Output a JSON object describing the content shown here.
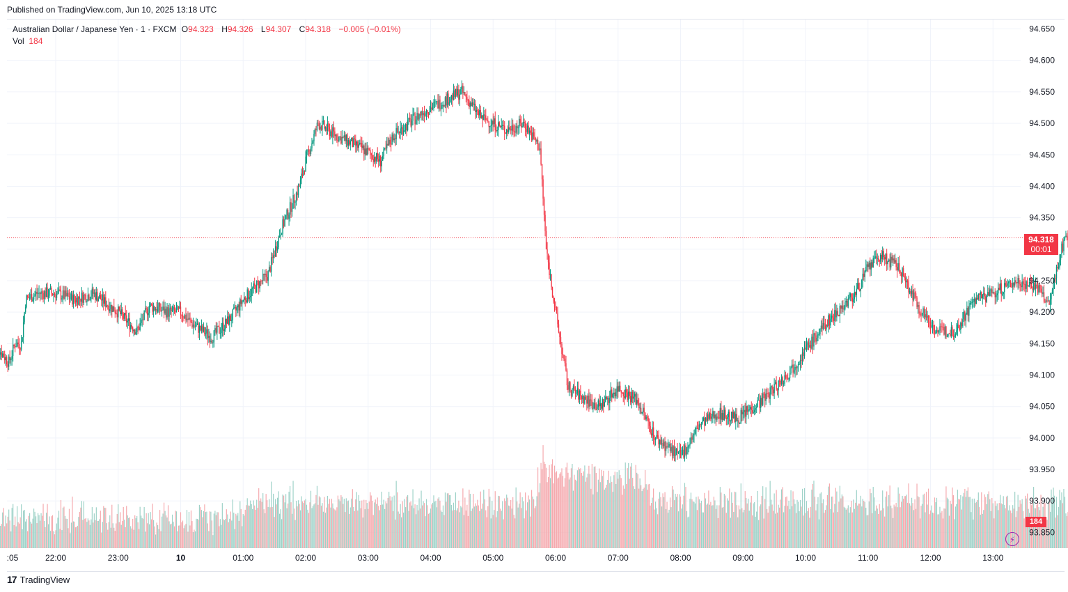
{
  "published": "Published on TradingView.com, Jun 10, 2025 13:18 UTC",
  "legend": {
    "symbol": "Australian Dollar / Japanese Yen · 1 · FXCM",
    "open_label": "O",
    "open": "94.323",
    "high_label": "H",
    "high": "94.326",
    "low_label": "L",
    "low": "94.307",
    "close_label": "C",
    "close": "94.318",
    "change": "−0.005 (−0.01%)",
    "vol_label": "Vol",
    "vol": "184"
  },
  "price_tag": {
    "price": "94.318",
    "countdown": "00:01"
  },
  "vol_tag": "184",
  "footer": {
    "logo_mark": "17",
    "brand": "TradingView"
  },
  "colors": {
    "up": "#089981",
    "down": "#f23645",
    "up_vol": "#9ed2c8",
    "down_vol": "#f5aaae",
    "grid": "#f0f3fa",
    "text": "#131722"
  },
  "icons": {
    "flash": "lightning-icon",
    "logo": "tradingview-logo-icon"
  },
  "chart_data": {
    "type": "candlestick",
    "title": "Australian Dollar / Japanese Yen · 1 · FXCM",
    "interval": "1 minute",
    "x_ticks": [
      ":05",
      "22:00",
      "23:00",
      "10",
      "01:00",
      "02:00",
      "03:00",
      "04:00",
      "05:00",
      "06:00",
      "07:00",
      "08:00",
      "09:00",
      "10:00",
      "11:00",
      "12:00",
      "13:00"
    ],
    "y_ticks": [
      "94.650",
      "94.600",
      "94.550",
      "94.500",
      "94.450",
      "94.400",
      "94.350",
      "94.300",
      "94.250",
      "94.200",
      "94.150",
      "94.100",
      "94.050",
      "94.000",
      "93.950",
      "93.900",
      "93.850"
    ],
    "ylim": [
      93.825,
      94.665
    ],
    "last_price": 94.318,
    "grid": true,
    "price_path": [
      [
        21.0,
        94.2
      ],
      [
        21.1,
        94.14
      ],
      [
        21.25,
        94.12
      ],
      [
        21.35,
        94.15
      ],
      [
        21.45,
        94.15
      ],
      [
        21.52,
        94.22
      ],
      [
        21.7,
        94.23
      ],
      [
        22.0,
        94.23
      ],
      [
        22.3,
        94.22
      ],
      [
        22.6,
        94.23
      ],
      [
        23.0,
        94.2
      ],
      [
        23.3,
        94.17
      ],
      [
        23.5,
        94.21
      ],
      [
        23.8,
        94.2
      ],
      [
        24.0,
        94.2
      ],
      [
        24.2,
        94.18
      ],
      [
        24.5,
        94.16
      ],
      [
        24.8,
        94.19
      ],
      [
        25.0,
        94.22
      ],
      [
        25.4,
        94.26
      ],
      [
        25.6,
        94.33
      ],
      [
        25.9,
        94.4
      ],
      [
        26.0,
        94.44
      ],
      [
        26.2,
        94.5
      ],
      [
        26.5,
        94.48
      ],
      [
        26.9,
        94.46
      ],
      [
        27.2,
        94.44
      ],
      [
        27.4,
        94.48
      ],
      [
        27.9,
        94.52
      ],
      [
        28.3,
        94.54
      ],
      [
        28.5,
        94.55
      ],
      [
        28.8,
        94.51
      ],
      [
        29.2,
        94.49
      ],
      [
        29.5,
        94.5
      ],
      [
        29.75,
        94.46
      ],
      [
        29.85,
        94.3
      ],
      [
        30.0,
        94.2
      ],
      [
        30.2,
        94.08
      ],
      [
        30.5,
        94.06
      ],
      [
        30.7,
        94.05
      ],
      [
        31.0,
        94.08
      ],
      [
        31.3,
        94.06
      ],
      [
        31.6,
        94.0
      ],
      [
        32.0,
        93.97
      ],
      [
        32.3,
        94.02
      ],
      [
        32.6,
        94.04
      ],
      [
        32.9,
        94.03
      ],
      [
        33.3,
        94.06
      ],
      [
        33.7,
        94.1
      ],
      [
        34.0,
        94.14
      ],
      [
        34.4,
        94.19
      ],
      [
        34.8,
        94.23
      ],
      [
        35.0,
        94.27
      ],
      [
        35.2,
        94.29
      ],
      [
        35.5,
        94.27
      ],
      [
        35.8,
        94.21
      ],
      [
        36.1,
        94.17
      ],
      [
        36.4,
        94.17
      ],
      [
        36.7,
        94.22
      ],
      [
        37.0,
        94.23
      ],
      [
        37.4,
        94.25
      ],
      [
        37.7,
        94.24
      ],
      [
        37.9,
        94.21
      ],
      [
        38.0,
        94.26
      ],
      [
        38.15,
        94.32
      ],
      [
        38.3,
        94.318
      ]
    ],
    "volume_range": [
      0,
      230
    ],
    "last_volume": 184
  }
}
